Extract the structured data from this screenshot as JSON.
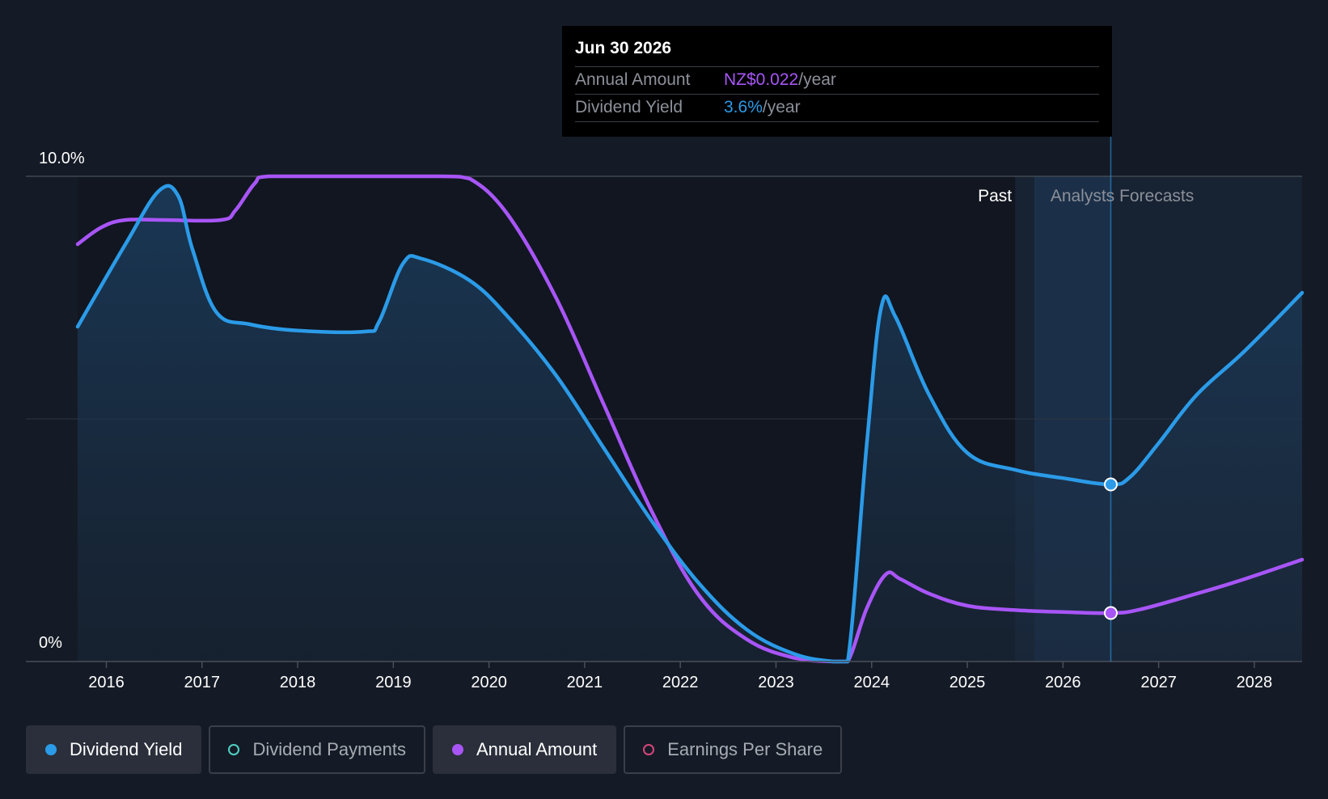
{
  "tooltip": {
    "date": "Jun 30 2026",
    "annual_label": "Annual Amount",
    "annual_value": "NZ$0.022",
    "annual_unit": "/year",
    "yield_label": "Dividend Yield",
    "yield_value": "3.6%",
    "yield_unit": "/year"
  },
  "regions": {
    "past": "Past",
    "forecast": "Analysts Forecasts"
  },
  "legend": [
    {
      "label": "Dividend Yield",
      "color": "#2b9be8",
      "active": true,
      "filled": true
    },
    {
      "label": "Dividend Payments",
      "color": "#4fd1c5",
      "active": false,
      "filled": false
    },
    {
      "label": "Annual Amount",
      "color": "#a855f7",
      "active": true,
      "filled": true
    },
    {
      "label": "Earnings Per Share",
      "color": "#d6457a",
      "active": false,
      "filled": false
    }
  ],
  "colors": {
    "yield": "#2b9be8",
    "annual": "#a855f7",
    "background": "#151b26"
  },
  "chart_data": {
    "type": "line",
    "x_ticks": [
      "2016",
      "2017",
      "2018",
      "2019",
      "2020",
      "2021",
      "2022",
      "2023",
      "2024",
      "2025",
      "2026",
      "2027",
      "2028"
    ],
    "y_ticks": [
      "10.0%",
      "0%"
    ],
    "ylim": [
      0,
      10
    ],
    "xlim": [
      2015.7,
      2028.5
    ],
    "past_end": 2025.5,
    "forecast_start": 2025.7,
    "hover_x": 2026.5,
    "series": [
      {
        "name": "Dividend Yield",
        "unit": "%",
        "points": [
          [
            2015.7,
            6.9
          ],
          [
            2016.2,
            8.6
          ],
          [
            2016.55,
            9.7
          ],
          [
            2016.75,
            9.6
          ],
          [
            2016.9,
            8.5
          ],
          [
            2017.15,
            7.2
          ],
          [
            2017.5,
            6.95
          ],
          [
            2018.0,
            6.82
          ],
          [
            2018.7,
            6.8
          ],
          [
            2018.85,
            7.0
          ],
          [
            2019.1,
            8.2
          ],
          [
            2019.3,
            8.3
          ],
          [
            2019.8,
            7.85
          ],
          [
            2020.2,
            7.1
          ],
          [
            2020.7,
            5.9
          ],
          [
            2021.2,
            4.4
          ],
          [
            2021.7,
            2.9
          ],
          [
            2022.2,
            1.6
          ],
          [
            2022.7,
            0.65
          ],
          [
            2023.2,
            0.15
          ],
          [
            2023.6,
            0.0
          ],
          [
            2023.75,
            0.0
          ],
          [
            2023.95,
            4.5
          ],
          [
            2024.1,
            7.3
          ],
          [
            2024.25,
            7.1
          ],
          [
            2024.6,
            5.5
          ],
          [
            2025.0,
            4.3
          ],
          [
            2025.5,
            3.95
          ],
          [
            2026.0,
            3.78
          ],
          [
            2026.5,
            3.65
          ],
          [
            2026.7,
            3.8
          ],
          [
            2027.0,
            4.5
          ],
          [
            2027.4,
            5.5
          ],
          [
            2027.9,
            6.4
          ],
          [
            2028.5,
            7.6
          ]
        ]
      },
      {
        "name": "Annual Amount",
        "unit": "NZ$",
        "points": [
          [
            2015.7,
            8.6
          ],
          [
            2015.95,
            8.95
          ],
          [
            2016.2,
            9.1
          ],
          [
            2016.6,
            9.1
          ],
          [
            2017.2,
            9.1
          ],
          [
            2017.35,
            9.3
          ],
          [
            2017.55,
            9.85
          ],
          [
            2017.7,
            10.0
          ],
          [
            2018.5,
            10.0
          ],
          [
            2019.5,
            10.0
          ],
          [
            2019.8,
            9.95
          ],
          [
            2020.2,
            9.2
          ],
          [
            2020.7,
            7.5
          ],
          [
            2021.2,
            5.3
          ],
          [
            2021.7,
            3.1
          ],
          [
            2022.2,
            1.35
          ],
          [
            2022.7,
            0.45
          ],
          [
            2023.2,
            0.07
          ],
          [
            2023.6,
            0.0
          ],
          [
            2023.75,
            0.0
          ],
          [
            2023.95,
            1.1
          ],
          [
            2024.15,
            1.8
          ],
          [
            2024.3,
            1.7
          ],
          [
            2024.6,
            1.4
          ],
          [
            2025.0,
            1.15
          ],
          [
            2025.5,
            1.06
          ],
          [
            2026.0,
            1.02
          ],
          [
            2026.5,
            1.0
          ],
          [
            2026.8,
            1.07
          ],
          [
            2027.4,
            1.4
          ],
          [
            2027.9,
            1.7
          ],
          [
            2028.5,
            2.1
          ]
        ]
      }
    ]
  }
}
